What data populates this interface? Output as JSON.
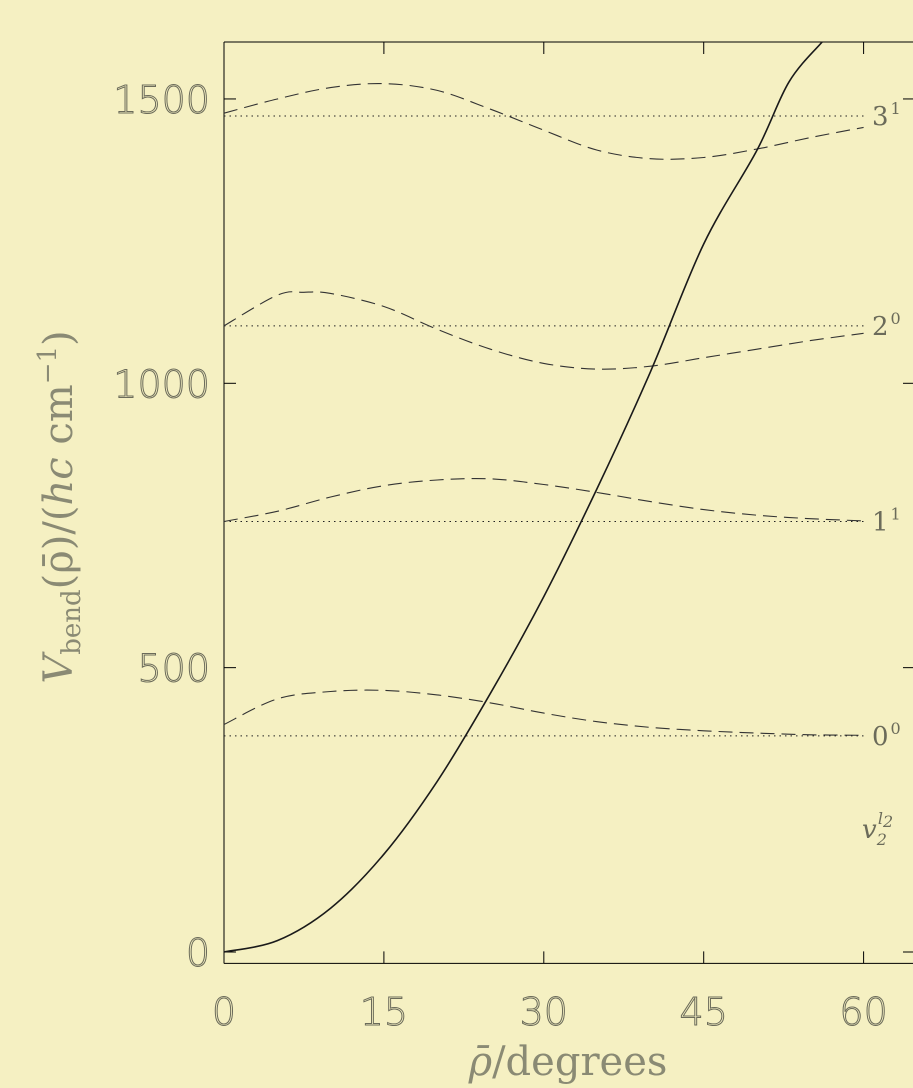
{
  "chart_data": {
    "type": "line",
    "title": "",
    "xlabel": "ρ̄/degrees",
    "ylabel": "V_bend(ρ̄)/(hc cm^-1)",
    "ylabel_parts": {
      "v": "V",
      "sub": "bend",
      "mid": "(ρ̄)/(",
      "hc": "hc",
      "unit": " cm",
      "exp": "−1",
      "close": ")"
    },
    "xlabel_parts": {
      "rho": "ρ̄",
      "rest": "/degrees"
    },
    "xlim": [
      0,
      64
    ],
    "ylim": [
      -20,
      1600
    ],
    "xticks": [
      0,
      15,
      30,
      45,
      60
    ],
    "yticks": [
      0,
      500,
      1000,
      1500
    ],
    "xtick_labels": [
      "0",
      "15",
      "30",
      "45",
      "60"
    ],
    "ytick_labels": [
      "0",
      "500",
      "1000",
      "1500"
    ],
    "grid": false,
    "potential": {
      "x": [
        0,
        5,
        10,
        15,
        20,
        25,
        30,
        35,
        40,
        45,
        50,
        55,
        56.1
      ],
      "y": [
        0,
        20,
        77,
        172,
        300,
        455,
        625,
        815,
        1020,
        1245,
        1490,
        1765,
        1600
      ]
    },
    "levels": [
      {
        "label": "0",
        "sup": "0",
        "energy": 380,
        "wavefunction": {
          "x": [
            0,
            5,
            10,
            15,
            20,
            25,
            30,
            35,
            40,
            45,
            50,
            55,
            60
          ],
          "y": [
            400,
            445,
            458,
            460,
            452,
            438,
            420,
            405,
            395,
            389,
            385,
            382,
            381
          ]
        }
      },
      {
        "label": "1",
        "sup": "1",
        "energy": 757,
        "wavefunction": {
          "x": [
            0,
            5,
            10,
            15,
            20,
            25,
            30,
            35,
            40,
            45,
            50,
            55,
            60
          ],
          "y": [
            757,
            775,
            800,
            820,
            830,
            832,
            822,
            808,
            792,
            778,
            768,
            762,
            758
          ]
        }
      },
      {
        "label": "2",
        "sup": "0",
        "energy": 1101,
        "wavefunction": {
          "x": [
            0,
            5,
            7.5,
            10,
            15,
            20,
            25,
            30,
            35,
            40,
            45,
            50,
            55,
            60
          ],
          "y": [
            1101,
            1155,
            1160,
            1158,
            1135,
            1095,
            1060,
            1035,
            1025,
            1030,
            1045,
            1060,
            1075,
            1088
          ]
        }
      },
      {
        "label": "3",
        "sup": "1",
        "energy": 1470,
        "wavefunction": {
          "x": [
            0,
            5,
            10,
            15,
            20,
            25,
            30,
            35,
            40,
            45,
            50,
            55,
            60
          ],
          "y": [
            1475,
            1500,
            1520,
            1527,
            1515,
            1482,
            1445,
            1410,
            1395,
            1397,
            1412,
            1432,
            1450
          ]
        }
      }
    ],
    "annotation": {
      "base": "v",
      "sup": "l",
      "sup_sub": "2",
      "sub": "2"
    },
    "colors": {
      "background": "#f5f0c2",
      "axes": "#000000",
      "curve": "#1a1a1a",
      "text": "#6b6b5a"
    }
  }
}
